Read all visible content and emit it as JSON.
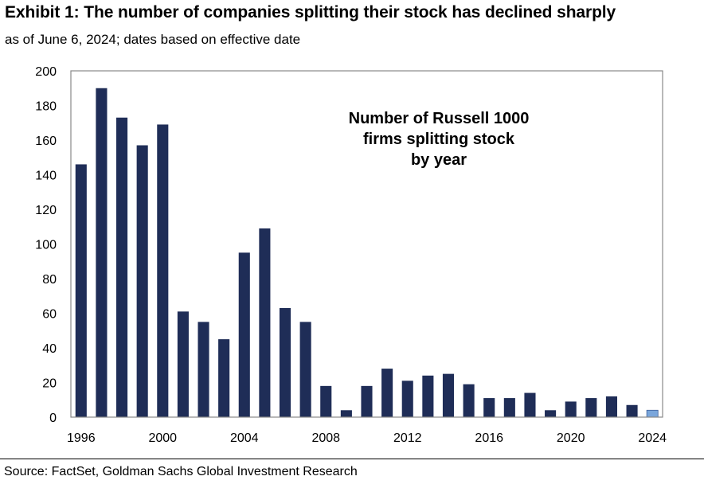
{
  "header": {
    "title": "Exhibit 1: The number of companies splitting their stock has declined sharply",
    "subtitle": "as of June 6, 2024; dates based on effective date"
  },
  "footer": {
    "source": "Source: FactSet, Goldman Sachs Global Investment Research"
  },
  "chart_data": {
    "type": "bar",
    "annotation": [
      "Number of Russell 1000",
      "firms splitting stock",
      "by year"
    ],
    "x": [
      1996,
      1997,
      1998,
      1999,
      2000,
      2001,
      2002,
      2003,
      2004,
      2005,
      2006,
      2007,
      2008,
      2009,
      2010,
      2011,
      2012,
      2013,
      2014,
      2015,
      2016,
      2017,
      2018,
      2019,
      2020,
      2021,
      2022,
      2023,
      2024
    ],
    "values": [
      146,
      190,
      173,
      157,
      169,
      61,
      55,
      45,
      95,
      109,
      63,
      55,
      18,
      4,
      18,
      28,
      21,
      24,
      25,
      19,
      11,
      11,
      14,
      4,
      9,
      11,
      12,
      7,
      4
    ],
    "ylim": [
      0,
      200
    ],
    "yticks": [
      0,
      20,
      40,
      60,
      80,
      100,
      120,
      140,
      160,
      180,
      200
    ],
    "xticks": [
      1996,
      2000,
      2004,
      2008,
      2012,
      2016,
      2020,
      2024
    ],
    "grid": false,
    "colors": {
      "bar": "#1f2d57",
      "bar_highlight": "#7aa6db",
      "frame": "#888888"
    }
  }
}
